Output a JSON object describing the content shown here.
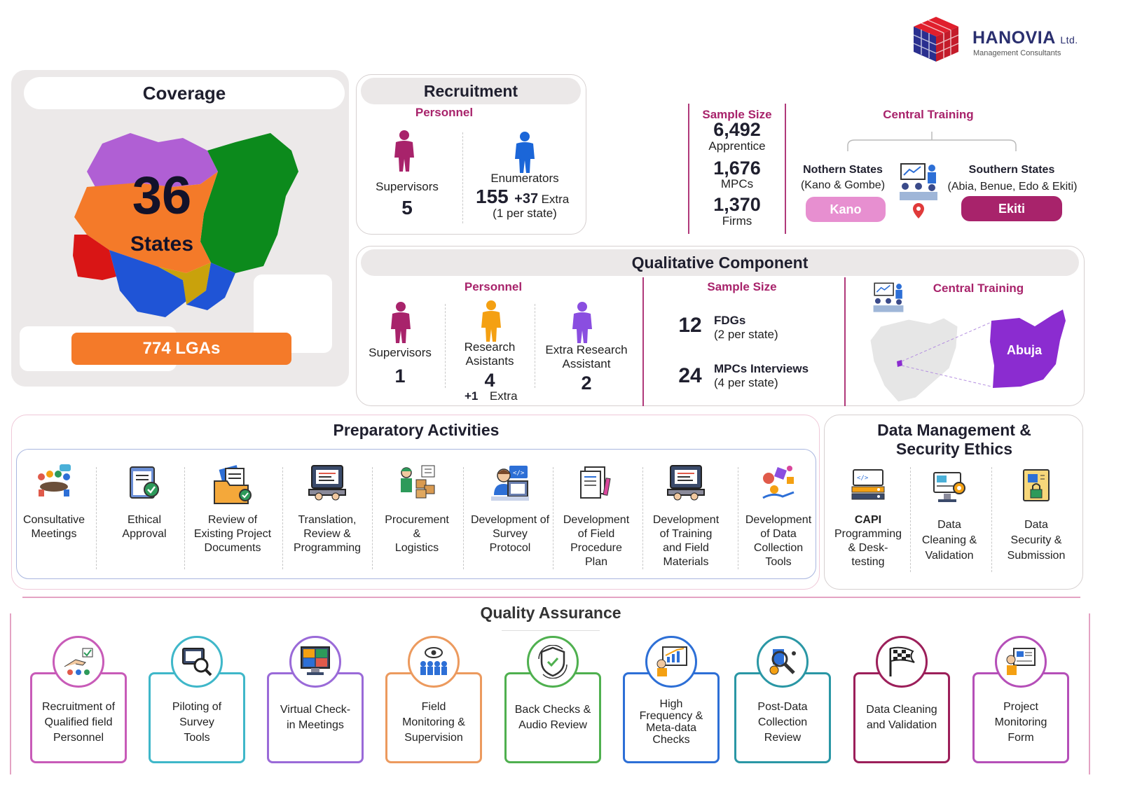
{
  "brand": {
    "name": "HANOVIA",
    "suffix": "Ltd.",
    "tagline": "Management Consultants"
  },
  "coverage": {
    "title": "Coverage",
    "states_number": "36",
    "states_label": "States",
    "lgas": "774 LGAs"
  },
  "recruitment": {
    "title": "Recruitment",
    "personnel_label": "Personnel",
    "supervisors": {
      "label": "Supervisors",
      "value": "5"
    },
    "enumerators": {
      "label": "Enumerators",
      "value": "155",
      "extra": "+37",
      "extra_label": "Extra",
      "note": "(1 per state)"
    }
  },
  "sample": {
    "title": "Sample Size",
    "apprentice": {
      "value": "6,492",
      "label": "Apprentice"
    },
    "mpcs": {
      "value": "1,676",
      "label": "MPCs"
    },
    "firms": {
      "value": "1,370",
      "label": "Firms"
    }
  },
  "central_training_top": {
    "title": "Central Training",
    "north": {
      "title": "Nothern States",
      "sub": "(Kano & Gombe)",
      "badge": "Kano"
    },
    "south": {
      "title": "Southern States",
      "sub": "(Abia, Benue, Edo & Ekiti)",
      "badge": "Ekiti"
    }
  },
  "qualitative": {
    "title": "Qualitative Component",
    "personnel_label": "Personnel",
    "supervisors": {
      "label": "Supervisors",
      "value": "1"
    },
    "research": {
      "label_line1": "Research",
      "label_line2": "Asistants",
      "value": "4",
      "extra": "+1",
      "extra_label": "Extra"
    },
    "extra_research": {
      "label_line1": "Extra Research",
      "label_line2": "Assistant",
      "value": "2"
    },
    "sample_label": "Sample Size",
    "fdgs": {
      "value": "12",
      "label": "FDGs",
      "note": "(2 per state)"
    },
    "mpc_interviews": {
      "value": "24",
      "label": "MPCs Interviews",
      "note": "(4 per state)"
    },
    "training_label": "Central Training",
    "abuja": "Abuja"
  },
  "preparatory": {
    "title": "Preparatory Activities",
    "items": [
      {
        "l1": "Consultative",
        "l2": "Meetings",
        "l3": "",
        "l4": ""
      },
      {
        "l1": "Ethical",
        "l2": "Approval",
        "l3": "",
        "l4": ""
      },
      {
        "l1": "Review of",
        "l2": "Existing Project",
        "l3": "Documents",
        "l4": ""
      },
      {
        "l1": "Translation,",
        "l2": "Review &",
        "l3": "Programming",
        "l4": ""
      },
      {
        "l1": "Procurement",
        "l2": "&",
        "l3": "Logistics",
        "l4": ""
      },
      {
        "l1": "Development of",
        "l2": "Survey",
        "l3": "Protocol",
        "l4": ""
      },
      {
        "l1": "Development",
        "l2": "of Field",
        "l3": "Procedure",
        "l4": "Plan"
      },
      {
        "l1": "Development",
        "l2": "of Training",
        "l3": "and Field",
        "l4": "Materials"
      },
      {
        "l1": "Development",
        "l2": "of Data",
        "l3": "Collection",
        "l4": "Tools"
      }
    ]
  },
  "data_management": {
    "title_line1": "Data Management &",
    "title_line2": "Security Ethics",
    "items": [
      {
        "l1": "CAPI",
        "l2": "Programming",
        "l3": "& Desk-",
        "l4": "testing"
      },
      {
        "l1": "Data",
        "l2": "Cleaning &",
        "l3": "Validation",
        "l4": ""
      },
      {
        "l1": "Data",
        "l2": "Security &",
        "l3": "Submission",
        "l4": ""
      }
    ]
  },
  "quality": {
    "title": "Quality Assurance",
    "items": [
      {
        "l1": "Recruitment of",
        "l2": "Qualified field",
        "l3": "Personnel",
        "l4": "",
        "color": "#c85bb8"
      },
      {
        "l1": "Piloting of",
        "l2": "Survey",
        "l3": "Tools",
        "l4": "",
        "color": "#3fb7c9"
      },
      {
        "l1": "Virtual Check-",
        "l2": "in Meetings",
        "l3": "",
        "l4": "",
        "color": "#9a6ad8"
      },
      {
        "l1": "Field",
        "l2": "Monitoring &",
        "l3": "Supervision",
        "l4": "",
        "color": "#ec9a5e"
      },
      {
        "l1": "Back Checks &",
        "l2": "Audio Review",
        "l3": "",
        "l4": "",
        "color": "#4fb04f"
      },
      {
        "l1": "High",
        "l2": "Frequency &",
        "l3": "Meta-data",
        "l4": "Checks",
        "color": "#2d6fd6"
      },
      {
        "l1": "Post-Data",
        "l2": "Collection",
        "l3": "Review",
        "l4": "",
        "color": "#2a97a5"
      },
      {
        "l1": "Data Cleaning",
        "l2": "and Validation",
        "l3": "",
        "l4": "",
        "color": "#9c1f5a"
      },
      {
        "l1": "Project",
        "l2": "Monitoring",
        "l3": "Form",
        "l4": "",
        "color": "#b54fb8"
      }
    ]
  },
  "colors": {
    "magenta": "#a8236b",
    "kano": "#e78fd0",
    "ekiti": "#a8236b",
    "lga": "#f47a29",
    "abuja": "#8b2cd0"
  }
}
